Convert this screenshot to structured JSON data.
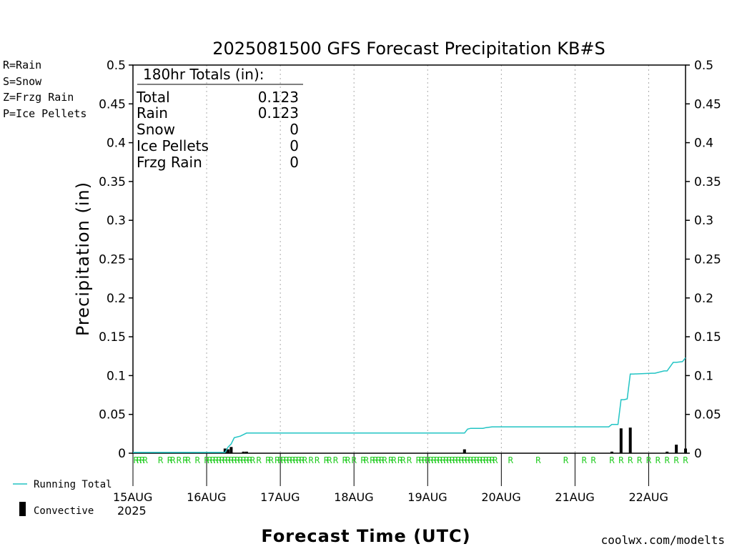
{
  "colors": {
    "rain": "#22cc22",
    "snow": "#3344dd",
    "frzg_rain": "#ee8833",
    "ice_pellets": "#ee22aa",
    "running_total": "#22c4c4",
    "convective": "#000000",
    "credit": "#cc2222"
  },
  "legend_top": {
    "rain": "R=Rain",
    "snow": "S=Snow",
    "frzg_rain": "Z=Frzg Rain",
    "ice_pellets": "P=Ice Pellets"
  },
  "legend_bottom": {
    "running_total": "Running Total",
    "convective": "Convective"
  },
  "totals_box": {
    "header": "180hr Totals (in):",
    "rows": [
      {
        "label": "Total",
        "value": "0.123"
      },
      {
        "label": "Rain",
        "value": "0.123"
      },
      {
        "label": "Snow",
        "value": "0"
      },
      {
        "label": "Ice Pellets",
        "value": "0"
      },
      {
        "label": "Frzg Rain",
        "value": "0"
      }
    ]
  },
  "credit": "coolwx.com/modelts",
  "chart_data": {
    "type": "bar",
    "title": "2025081500 GFS Forecast Precipitation KB#S",
    "xlabel": "Forecast Time (UTC)",
    "ylabel": "Precipitation (in)",
    "year_label": "2025",
    "x_unit": "forecast hour",
    "xlim": [
      0,
      180
    ],
    "ylim": [
      0,
      0.5
    ],
    "grid": "vertical dotted lines at each day",
    "yticks": [
      "0",
      "0.05",
      "0.1",
      "0.15",
      "0.2",
      "0.25",
      "0.3",
      "0.35",
      "0.4",
      "0.45",
      "0.5"
    ],
    "xticks": [
      {
        "hour": 0,
        "label": "15AUG"
      },
      {
        "hour": 24,
        "label": "16AUG"
      },
      {
        "hour": 48,
        "label": "17AUG"
      },
      {
        "hour": 72,
        "label": "18AUG"
      },
      {
        "hour": 96,
        "label": "19AUG"
      },
      {
        "hour": 120,
        "label": "20AUG"
      },
      {
        "hour": 144,
        "label": "21AUG"
      },
      {
        "hour": 168,
        "label": "22AUG"
      }
    ],
    "series": [
      {
        "name": "Running Total",
        "style": "line",
        "x": [
          0,
          30,
          31,
          32,
          33,
          35,
          36,
          37,
          38,
          90,
          108,
          109,
          110,
          114,
          115,
          117,
          120,
          155,
          156,
          158,
          159,
          160,
          161,
          162,
          163,
          169,
          170,
          173,
          174,
          176,
          177,
          179,
          180
        ],
        "y": [
          0.001,
          0.001,
          0.008,
          0.012,
          0.02,
          0.022,
          0.024,
          0.026,
          0.026,
          0.026,
          0.026,
          0.031,
          0.032,
          0.032,
          0.033,
          0.034,
          0.034,
          0.034,
          0.037,
          0.037,
          0.069,
          0.069,
          0.07,
          0.102,
          0.102,
          0.103,
          0.103,
          0.106,
          0.106,
          0.117,
          0.117,
          0.118,
          0.123
        ]
      },
      {
        "name": "Convective",
        "style": "bar",
        "x": [
          30,
          31,
          32,
          36,
          37,
          108,
          156,
          159,
          162,
          174,
          177,
          180
        ],
        "y": [
          0.006,
          0.005,
          0.008,
          0.002,
          0.002,
          0.005,
          0.002,
          0.032,
          0.033,
          0.002,
          0.011,
          0.006
        ]
      }
    ],
    "ptype_markers": {
      "label": "R",
      "hours": [
        1,
        2,
        3,
        4,
        9,
        12,
        13,
        15,
        17,
        18,
        21,
        24,
        25,
        26,
        27,
        28,
        29,
        30,
        31,
        32,
        33,
        34,
        35,
        36,
        37,
        38,
        39,
        41,
        44,
        45,
        47,
        48,
        49,
        50,
        51,
        52,
        53,
        54,
        55,
        56,
        58,
        60,
        63,
        64,
        66,
        69,
        70,
        72,
        75,
        76,
        78,
        79,
        80,
        81,
        82,
        84,
        85,
        87,
        88,
        90,
        93,
        94,
        95,
        96,
        97,
        98,
        99,
        100,
        101,
        102,
        103,
        104,
        105,
        106,
        107,
        108,
        109,
        110,
        111,
        112,
        113,
        114,
        115,
        116,
        117,
        118,
        123,
        132,
        141,
        147,
        150,
        156,
        159,
        162,
        165,
        168,
        171,
        174,
        177,
        180
      ]
    }
  }
}
